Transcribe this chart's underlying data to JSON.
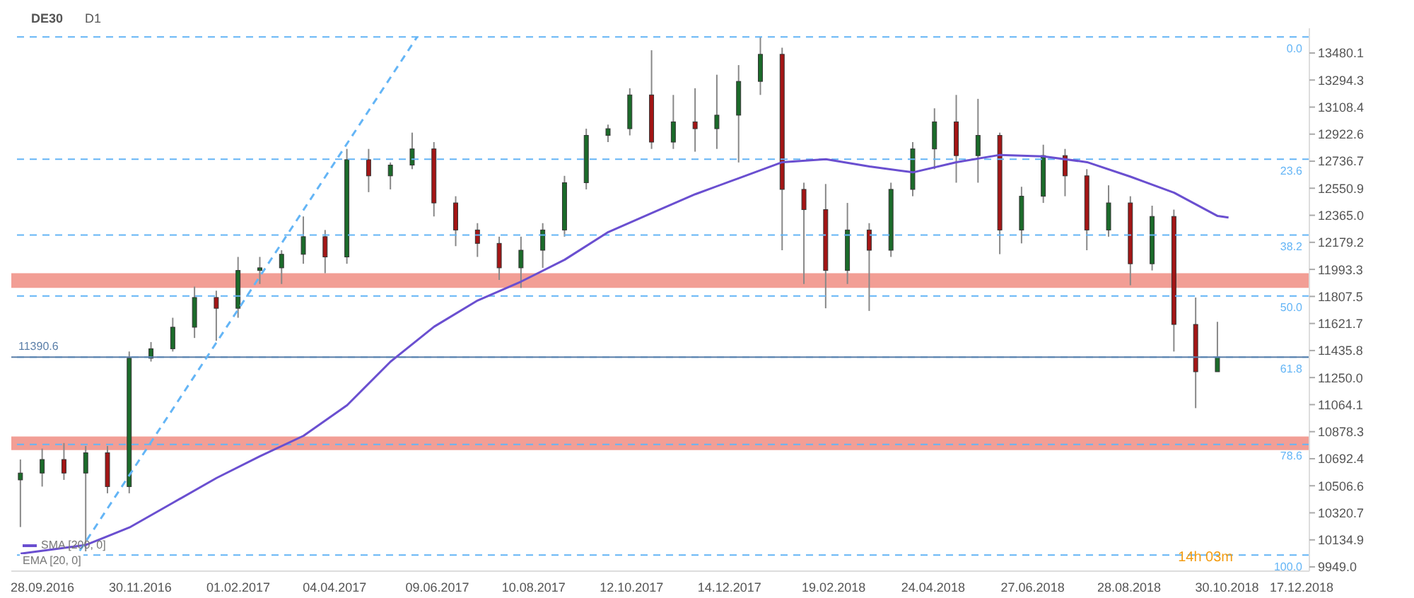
{
  "chart_data": {
    "type": "candlestick",
    "title": "DE30",
    "subtitle": "D1",
    "x": [
      "2016-09-14",
      "2016-09-28",
      "2016-10-12",
      "2016-10-26",
      "2016-11-09",
      "2016-11-23",
      "2016-12-07",
      "2016-12-21",
      "2017-01-04",
      "2017-01-18",
      "2017-02-01",
      "2017-02-15",
      "2017-03-01",
      "2017-03-15",
      "2017-03-29",
      "2017-04-12",
      "2017-04-26",
      "2017-05-10",
      "2017-05-24",
      "2017-06-07",
      "2017-06-21",
      "2017-07-05",
      "2017-07-19",
      "2017-08-02",
      "2017-08-16",
      "2017-08-30",
      "2017-09-13",
      "2017-09-27",
      "2017-10-11",
      "2017-10-25",
      "2017-11-08",
      "2017-11-22",
      "2017-12-06",
      "2017-12-20",
      "2018-01-03",
      "2018-01-17",
      "2018-01-31",
      "2018-02-14",
      "2018-02-28",
      "2018-03-14",
      "2018-03-28",
      "2018-04-11",
      "2018-04-25",
      "2018-05-09",
      "2018-05-23",
      "2018-06-06",
      "2018-06-20",
      "2018-07-04",
      "2018-07-18",
      "2018-08-01",
      "2018-08-15",
      "2018-08-29",
      "2018-09-12",
      "2018-09-26",
      "2018-10-10",
      "2018-10-24"
    ],
    "ohlc": [
      [
        10547,
        10687,
        10223,
        10594
      ],
      [
        10594,
        10762,
        10501,
        10687
      ],
      [
        10687,
        10800,
        10547,
        10594
      ],
      [
        10594,
        10780,
        10056,
        10733
      ],
      [
        10733,
        10780,
        10455,
        10501
      ],
      [
        10501,
        11429,
        10455,
        11383
      ],
      [
        11383,
        11494,
        11360,
        11448
      ],
      [
        11448,
        11661,
        11429,
        11596
      ],
      [
        11596,
        11875,
        11522,
        11800
      ],
      [
        11800,
        11847,
        11503,
        11726
      ],
      [
        11726,
        12079,
        11661,
        11986
      ],
      [
        11986,
        12079,
        11893,
        12004
      ],
      [
        12004,
        12125,
        11893,
        12097
      ],
      [
        12097,
        12357,
        12032,
        12218
      ],
      [
        12218,
        12264,
        11967,
        12079
      ],
      [
        12079,
        12821,
        12032,
        12747
      ],
      [
        12747,
        12821,
        12524,
        12636
      ],
      [
        12636,
        12728,
        12543,
        12710
      ],
      [
        12710,
        12933,
        12682,
        12821
      ],
      [
        12821,
        12868,
        12357,
        12450
      ],
      [
        12450,
        12496,
        12153,
        12264
      ],
      [
        12264,
        12311,
        12079,
        12172
      ],
      [
        12172,
        12218,
        11921,
        12004
      ],
      [
        12004,
        12218,
        11866,
        12125
      ],
      [
        12125,
        12311,
        12004,
        12264
      ],
      [
        12264,
        12636,
        12218,
        12589
      ],
      [
        12589,
        12960,
        12543,
        12914
      ],
      [
        12914,
        12988,
        12868,
        12960
      ],
      [
        12960,
        13238,
        12914,
        13192
      ],
      [
        13192,
        13499,
        12821,
        12868
      ],
      [
        12868,
        13192,
        12821,
        13007
      ],
      [
        13007,
        13238,
        12802,
        12960
      ],
      [
        12960,
        13331,
        12821,
        13053
      ],
      [
        13053,
        13397,
        12728,
        13285
      ],
      [
        13285,
        13591,
        13192,
        13471
      ],
      [
        13471,
        13517,
        12125,
        12543
      ],
      [
        12543,
        12589,
        11893,
        12404
      ],
      [
        12404,
        12580,
        11726,
        11986
      ],
      [
        11986,
        12450,
        11893,
        12264
      ],
      [
        12264,
        12311,
        11708,
        12125
      ],
      [
        12125,
        12589,
        12079,
        12543
      ],
      [
        12543,
        12868,
        12496,
        12821
      ],
      [
        12821,
        13100,
        12682,
        13007
      ],
      [
        13007,
        13192,
        12589,
        12775
      ],
      [
        12775,
        13165,
        12589,
        12914
      ],
      [
        12914,
        12933,
        12098,
        12264
      ],
      [
        12264,
        12561,
        12172,
        12496
      ],
      [
        12496,
        12850,
        12450,
        12775
      ],
      [
        12775,
        12821,
        12496,
        12636
      ],
      [
        12636,
        12682,
        12125,
        12264
      ],
      [
        12264,
        12571,
        12218,
        12450
      ],
      [
        12450,
        12496,
        11884,
        12032
      ],
      [
        12032,
        12431,
        11986,
        12357
      ],
      [
        12357,
        12404,
        11429,
        11615
      ],
      [
        11615,
        11800,
        11040,
        11290
      ],
      [
        11290,
        11633,
        11290,
        11390.6
      ]
    ],
    "series": [
      {
        "type": "line",
        "name": "SMA [200, 0]",
        "color": "#6a4fd0",
        "x": [
          "2016-09-14",
          "2016-10-26",
          "2016-11-23",
          "2016-12-21",
          "2017-01-18",
          "2017-02-15",
          "2017-03-15",
          "2017-04-12",
          "2017-05-10",
          "2017-06-07",
          "2017-07-05",
          "2017-08-02",
          "2017-08-30",
          "2017-09-27",
          "2017-10-25",
          "2017-11-22",
          "2017-12-20",
          "2018-01-17",
          "2018-02-14",
          "2018-03-14",
          "2018-04-11",
          "2018-05-09",
          "2018-06-06",
          "2018-07-04",
          "2018-08-01",
          "2018-08-29",
          "2018-09-26",
          "2018-10-24",
          "2018-10-31"
        ],
        "values": [
          10040,
          10100,
          10220,
          10390,
          10560,
          10710,
          10850,
          11060,
          11360,
          11600,
          11780,
          11910,
          12060,
          12250,
          12380,
          12510,
          12620,
          12730,
          12750,
          12700,
          12660,
          12730,
          12780,
          12770,
          12730,
          12630,
          12520,
          12360,
          12350
        ]
      },
      {
        "type": "line",
        "color": "#64b5f6",
        "line_style": "dashed",
        "x": [
          "2016-10-22",
          "2017-05-27"
        ],
        "values": [
          10060,
          13590
        ]
      }
    ],
    "xlim": [
      "2016-09-08",
      "2018-12-22"
    ],
    "xticks": [
      {
        "value": "2016-09-28",
        "label": "28.09.2016"
      },
      {
        "value": "2016-11-30",
        "label": "30.11.2016"
      },
      {
        "value": "2017-02-01",
        "label": "01.02.2017"
      },
      {
        "value": "2017-04-04",
        "label": "04.04.2017"
      },
      {
        "value": "2017-06-09",
        "label": "09.06.2017"
      },
      {
        "value": "2017-08-10",
        "label": "10.08.2017"
      },
      {
        "value": "2017-10-12",
        "label": "12.10.2017"
      },
      {
        "value": "2017-12-14",
        "label": "14.12.2017"
      },
      {
        "value": "2018-02-19",
        "label": "19.02.2018"
      },
      {
        "value": "2018-04-24",
        "label": "24.04.2018"
      },
      {
        "value": "2018-06-27",
        "label": "27.06.2018"
      },
      {
        "value": "2018-08-28",
        "label": "28.08.2018"
      },
      {
        "value": "2018-10-30",
        "label": "30.10.2018"
      },
      {
        "value": "2018-12-17",
        "label": "17.12.2018"
      }
    ],
    "ylim": [
      9920,
      13650
    ],
    "yticks": [
      {
        "value": 9949,
        "label": "9949.0"
      },
      10134.9,
      10320.7,
      10506.6,
      10692.4,
      10878.3,
      11064.1,
      {
        "value": 11250,
        "label": "11250.0"
      },
      11435.8,
      11621.7,
      11807.5,
      11993.3,
      12179.2,
      {
        "value": 12365,
        "label": "12365.0"
      },
      12550.9,
      12736.7,
      12922.6,
      13108.4,
      13294.3,
      13480.1
    ],
    "ref_lines": [
      {
        "axis": "y",
        "value": 13590,
        "color": "#64b5f6",
        "line_style": "dashed"
      },
      {
        "axis": "y",
        "value": 12750,
        "color": "#64b5f6",
        "line_style": "dashed"
      },
      {
        "axis": "y",
        "value": 12230,
        "color": "#64b5f6",
        "line_style": "dashed"
      },
      {
        "axis": "y",
        "value": 11810,
        "color": "#64b5f6",
        "line_style": "dashed"
      },
      {
        "axis": "y",
        "value": 11390,
        "color": "#64b5f6",
        "line_style": "dashed"
      },
      {
        "axis": "y",
        "value": 10790,
        "color": "#64b5f6",
        "line_style": "dashed"
      },
      {
        "axis": "y",
        "value": 10030,
        "color": "#64b5f6",
        "line_style": "dashed"
      },
      {
        "axis": "y",
        "value": 11390.6,
        "label": "11390.6",
        "color": "#5a7ea8",
        "line_style": "solid"
      }
    ],
    "bands": [
      {
        "axis": "y",
        "from": 11866,
        "to": 11967,
        "color": "#f1948a"
      },
      {
        "axis": "y",
        "from": 10752,
        "to": 10845,
        "color": "#f1948a"
      }
    ],
    "annotations": [
      "EMA [20, 0]",
      "14h 03m",
      {
        "text": "0.0",
        "y": 13590
      },
      {
        "text": "23.6",
        "y": 12750
      },
      {
        "text": "38.2",
        "y": 12230
      },
      {
        "text": "50.0",
        "y": 11810
      },
      {
        "text": "61.8",
        "y": 11390
      },
      {
        "text": "78.6",
        "y": 10790
      },
      {
        "text": "100.0",
        "y": 10030
      }
    ],
    "legend": "bottom left",
    "marker": "none"
  }
}
